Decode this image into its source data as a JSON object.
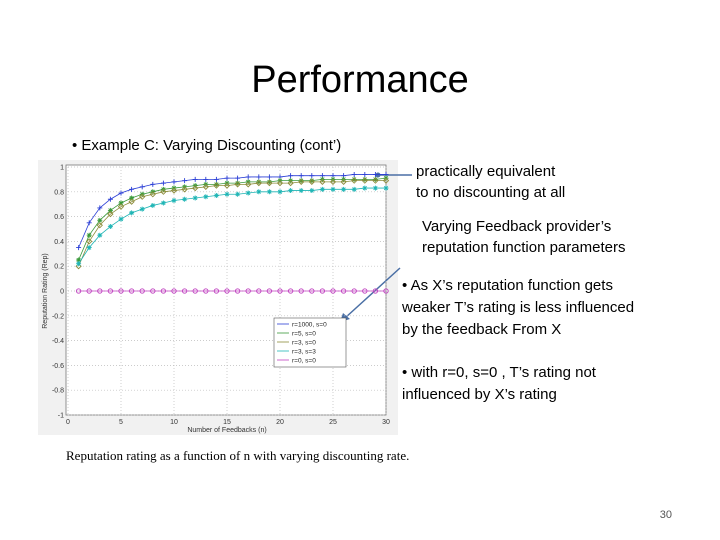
{
  "slide": {
    "title": "Performance",
    "bullet": "• Example C: Varying Discounting (cont’)",
    "note_top": [
      "practically equivalent",
      "to no discounting at all"
    ],
    "note_mid": [
      "Varying Feedback provider’s",
      "reputation function parameters"
    ],
    "point_1": [
      "• As X’s reputation function gets",
      "weaker T’s rating is less influenced",
      "by the feedback From X"
    ],
    "point_2": [
      "• with r=0, s=0 , T’s rating not",
      "influenced by X’s rating"
    ],
    "caption": "Reputation rating as a function of n with varying discounting rate.",
    "page_number": "30"
  },
  "chart_data": {
    "type": "line",
    "x_label": "Number of Feedbacks (n)",
    "y_label": "Reputation Rating (Rep)",
    "x": [
      1,
      2,
      3,
      4,
      5,
      6,
      7,
      8,
      9,
      10,
      11,
      12,
      13,
      14,
      15,
      16,
      17,
      18,
      19,
      20,
      21,
      22,
      23,
      24,
      25,
      26,
      27,
      28,
      29,
      30
    ],
    "xlim": [
      0,
      30
    ],
    "xticks": [
      0,
      5,
      10,
      15,
      20,
      25,
      30
    ],
    "ylim": [
      -1,
      1
    ],
    "yticks": [
      -1,
      -0.8,
      -0.6,
      -0.4,
      -0.2,
      0,
      0.2,
      0.4,
      0.6,
      0.8,
      1
    ],
    "grid": true,
    "legend": "lower right",
    "series": [
      {
        "name": "r=1000, s=0",
        "color": "#2b3fd6",
        "marker": "plus",
        "values": [
          0.35,
          0.55,
          0.67,
          0.74,
          0.79,
          0.82,
          0.84,
          0.86,
          0.87,
          0.88,
          0.89,
          0.9,
          0.9,
          0.9,
          0.91,
          0.91,
          0.92,
          0.92,
          0.92,
          0.92,
          0.93,
          0.93,
          0.93,
          0.93,
          0.93,
          0.93,
          0.94,
          0.94,
          0.94,
          0.94
        ]
      },
      {
        "name": "r=5, s=0",
        "color": "#3a9a3a",
        "marker": "star",
        "values": [
          0.25,
          0.45,
          0.57,
          0.65,
          0.71,
          0.75,
          0.78,
          0.8,
          0.82,
          0.83,
          0.84,
          0.85,
          0.86,
          0.86,
          0.87,
          0.87,
          0.88,
          0.88,
          0.88,
          0.89,
          0.89,
          0.89,
          0.89,
          0.9,
          0.9,
          0.9,
          0.9,
          0.9,
          0.9,
          0.91
        ]
      },
      {
        "name": "r=3, s=0",
        "color": "#8c8c3a",
        "marker": "diamond",
        "values": [
          0.2,
          0.4,
          0.53,
          0.62,
          0.68,
          0.72,
          0.76,
          0.78,
          0.8,
          0.81,
          0.82,
          0.83,
          0.84,
          0.85,
          0.85,
          0.86,
          0.86,
          0.87,
          0.87,
          0.87,
          0.87,
          0.88,
          0.88,
          0.88,
          0.88,
          0.88,
          0.89,
          0.89,
          0.89,
          0.89
        ]
      },
      {
        "name": "r=3, s=3",
        "color": "#1fb5b5",
        "marker": "star",
        "values": [
          0.22,
          0.35,
          0.45,
          0.52,
          0.58,
          0.63,
          0.66,
          0.69,
          0.71,
          0.73,
          0.74,
          0.75,
          0.76,
          0.77,
          0.78,
          0.78,
          0.79,
          0.8,
          0.8,
          0.8,
          0.81,
          0.81,
          0.81,
          0.82,
          0.82,
          0.82,
          0.82,
          0.83,
          0.83,
          0.83
        ]
      },
      {
        "name": "r=0, s=0",
        "color": "#c040c0",
        "marker": "circle",
        "values": [
          0,
          0,
          0,
          0,
          0,
          0,
          0,
          0,
          0,
          0,
          0,
          0,
          0,
          0,
          0,
          0,
          0,
          0,
          0,
          0,
          0,
          0,
          0,
          0,
          0,
          0,
          0,
          0,
          0,
          0
        ]
      }
    ]
  }
}
